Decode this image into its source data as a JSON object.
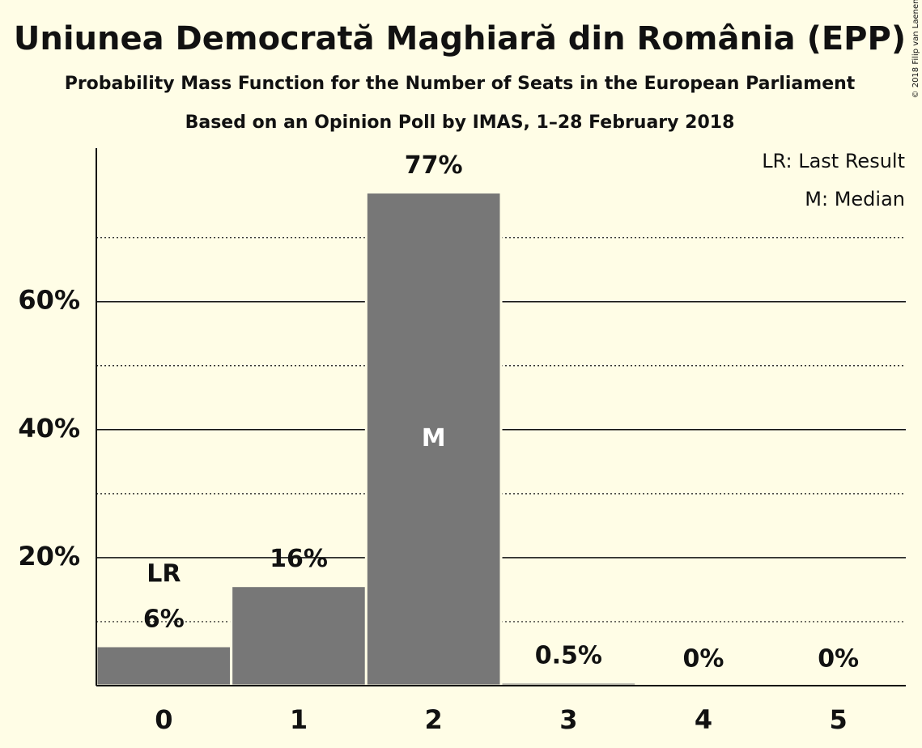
{
  "chart_data": {
    "type": "bar",
    "title": "Uniunea Democrată Maghiară din România (EPP)",
    "subtitle": "Probability Mass Function for the Number of Seats in the European Parliament",
    "subtitle2": "Based on an Opinion Poll by IMAS, 1–28 February 2018",
    "copyright": "© 2018 Filip van Laenen",
    "categories": [
      "0",
      "1",
      "2",
      "3",
      "4",
      "5"
    ],
    "values": [
      6.2,
      15.6,
      77.1,
      0.5,
      0,
      0
    ],
    "value_labels": [
      "6%",
      "16%",
      "77%",
      "0.5%",
      "0%",
      "0%"
    ],
    "bar_labels": [
      "LR",
      null,
      "M",
      null,
      null,
      null
    ],
    "legend": [
      "LR: Last Result",
      "M: Median"
    ],
    "color": "#777777",
    "ylim": [
      0,
      84
    ],
    "yticks": [
      {
        "value": 20,
        "label": "20%"
      },
      {
        "value": 40,
        "label": "40%"
      },
      {
        "value": 60,
        "label": "60%"
      }
    ],
    "minor_yticks": [
      10,
      30,
      50,
      70
    ],
    "grid": true
  }
}
